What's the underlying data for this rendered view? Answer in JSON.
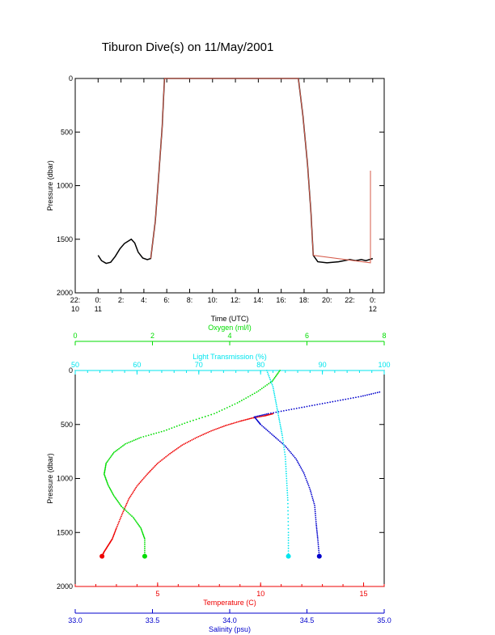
{
  "title": "Tiburon Dive(s) on 11/May/2001",
  "colors": {
    "axis": "#000000",
    "track": "#000000",
    "track_smooth": "#d65a4a",
    "oxygen": "#00dd00",
    "light": "#00e5ee",
    "temperature": "#ee0000",
    "salinity": "#0000cc"
  },
  "chart_data": [
    {
      "type": "line",
      "title": "Tiburon Dive(s) on 11/May/2001",
      "xlabel": "Time (UTC)",
      "ylabel": "Pressure (dbar)",
      "xlim": [
        -2,
        25
      ],
      "ylim": [
        2000,
        0
      ],
      "y_reversed": true,
      "x_ticks": [
        {
          "v": -2,
          "l1": "22:",
          "l2": "10"
        },
        {
          "v": 0,
          "l1": "0:",
          "l2": "11"
        },
        {
          "v": 2,
          "l1": "2:",
          "l2": ""
        },
        {
          "v": 4,
          "l1": "4:",
          "l2": ""
        },
        {
          "v": 6,
          "l1": "6:",
          "l2": ""
        },
        {
          "v": 8,
          "l1": "8:",
          "l2": ""
        },
        {
          "v": 10,
          "l1": "10:",
          "l2": ""
        },
        {
          "v": 12,
          "l1": "12:",
          "l2": ""
        },
        {
          "v": 14,
          "l1": "14:",
          "l2": ""
        },
        {
          "v": 16,
          "l1": "16:",
          "l2": ""
        },
        {
          "v": 18,
          "l1": "18:",
          "l2": ""
        },
        {
          "v": 20,
          "l1": "20:",
          "l2": ""
        },
        {
          "v": 22,
          "l1": "22:",
          "l2": ""
        },
        {
          "v": 24,
          "l1": "0:",
          "l2": "12"
        }
      ],
      "y_ticks": [
        0,
        500,
        1000,
        1500,
        2000
      ],
      "series": [
        {
          "color": "#000000",
          "x": [
            0,
            0.3,
            0.7,
            1.1,
            1.5,
            1.9,
            2.3,
            2.6,
            2.9,
            3.2,
            3.5,
            3.9,
            4.3,
            4.6,
            5.0,
            5.3,
            5.6,
            5.8,
            6.5,
            10,
            14,
            17.5,
            17.9,
            18.3,
            18.6,
            18.8,
            19.2,
            20,
            21,
            21.5,
            22,
            22.5,
            23,
            23.4,
            24
          ],
          "y": [
            1650,
            1700,
            1725,
            1715,
            1660,
            1590,
            1540,
            1520,
            1500,
            1535,
            1620,
            1675,
            1690,
            1680,
            1330,
            900,
            450,
            0,
            0,
            0,
            0,
            0,
            350,
            800,
            1250,
            1650,
            1710,
            1720,
            1710,
            1700,
            1690,
            1700,
            1690,
            1700,
            1680
          ]
        },
        {
          "color": "#d65a4a",
          "x": [
            4.6,
            5.0,
            5.3,
            5.6,
            5.8,
            17.5,
            17.9,
            18.3,
            18.6,
            18.8,
            23.8,
            23.8
          ],
          "y": [
            1680,
            1330,
            900,
            450,
            0,
            0,
            350,
            800,
            1250,
            1650,
            1720,
            860
          ]
        }
      ]
    },
    {
      "type": "scatter",
      "ylabel": "Pressure (dbar)",
      "ylim": [
        2000,
        0
      ],
      "y_reversed": true,
      "y_ticks": [
        0,
        500,
        1000,
        1500,
        2000
      ],
      "axes": [
        {
          "label": "Oxygen (ml/l)",
          "color": "#00dd00",
          "lim": [
            0,
            8
          ],
          "ticks": [
            0,
            2,
            4,
            6,
            8
          ],
          "position": "top-outer"
        },
        {
          "label": "Light Transmission (%)",
          "color": "#00e5ee",
          "lim": [
            50,
            100
          ],
          "ticks": [
            50,
            60,
            70,
            80,
            90,
            100
          ],
          "position": "top"
        },
        {
          "label": "Temperature (C)",
          "color": "#ee0000",
          "lim": [
            1,
            16
          ],
          "ticks": [
            5,
            10,
            15
          ],
          "position": "bottom"
        },
        {
          "label": "Salinity (psu)",
          "color": "#0000cc",
          "lim": [
            33.0,
            35.0
          ],
          "ticks": [
            "33.0",
            "33.5",
            "34.0",
            "34.5",
            "35.0"
          ],
          "position": "bottom-outer"
        }
      ],
      "series": [
        {
          "axis": "Temperature (C)",
          "color": "#ee0000",
          "x": [
            10.6,
            10.2,
            9.6,
            9.0,
            8.3,
            7.6,
            6.9,
            6.2,
            5.6,
            5.0,
            4.5,
            4.0,
            3.6,
            3.3,
            3.0,
            2.8,
            2.6,
            2.4,
            2.3
          ],
          "y": [
            400,
            420,
            440,
            470,
            510,
            560,
            620,
            690,
            770,
            860,
            960,
            1070,
            1190,
            1320,
            1460,
            1560,
            1620,
            1680,
            1720
          ]
        },
        {
          "axis": "Salinity (psu)",
          "color": "#0000cc",
          "x": [
            34.97,
            34.85,
            34.7,
            34.55,
            34.4,
            34.25,
            34.16,
            34.2,
            34.28,
            34.36,
            34.43,
            34.48,
            34.52,
            34.55,
            34.56,
            34.57,
            34.58
          ],
          "y": [
            200,
            240,
            280,
            320,
            360,
            400,
            430,
            500,
            600,
            700,
            820,
            950,
            1100,
            1250,
            1420,
            1560,
            1720
          ]
        },
        {
          "axis": "Oxygen (ml/l)",
          "color": "#00dd00",
          "x": [
            5.3,
            5.1,
            4.7,
            4.2,
            3.6,
            2.9,
            2.3,
            1.7,
            1.3,
            1.0,
            0.8,
            0.75,
            0.85,
            1.0,
            1.2,
            1.5,
            1.7,
            1.8,
            1.8
          ],
          "y": [
            0,
            100,
            200,
            300,
            400,
            480,
            560,
            620,
            680,
            760,
            860,
            960,
            1060,
            1160,
            1260,
            1360,
            1460,
            1560,
            1720
          ]
        },
        {
          "axis": "Light Transmission (%)",
          "color": "#00e5ee",
          "x": [
            81,
            82,
            82.5,
            83,
            83.5,
            84,
            84.2,
            84.4,
            84.5,
            84.5
          ],
          "y": [
            0,
            150,
            300,
            450,
            600,
            800,
            1000,
            1200,
            1500,
            1720
          ]
        }
      ]
    }
  ]
}
